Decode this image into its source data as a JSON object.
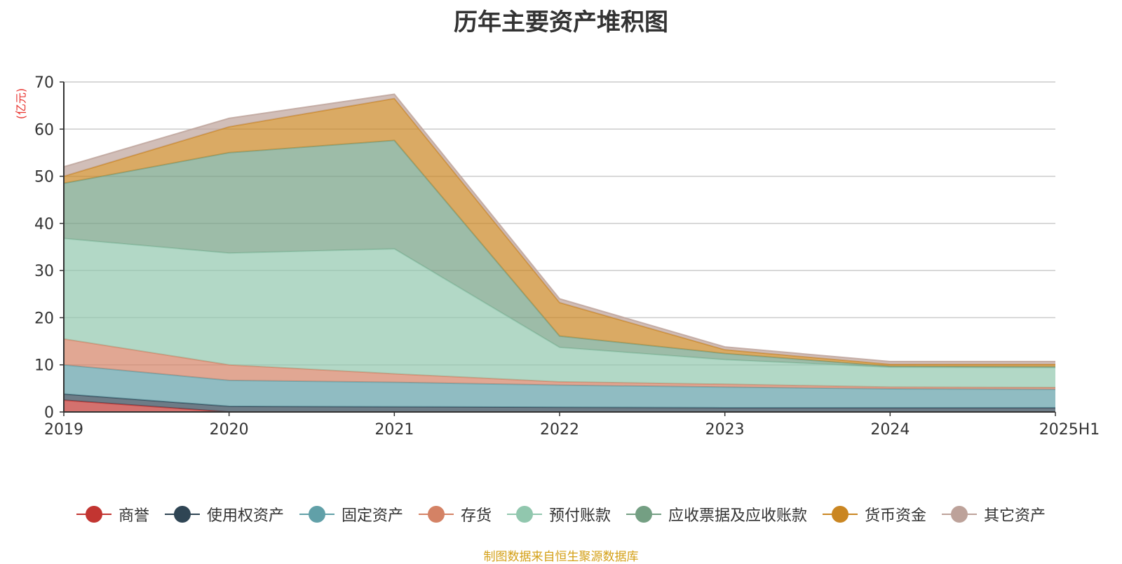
{
  "chart_data": {
    "type": "area",
    "stacked": true,
    "title": "历年主要资产堆积图",
    "unit_label": "(亿元)",
    "x": [
      "2019",
      "2020",
      "2021",
      "2022",
      "2023",
      "2024",
      "2025H1"
    ],
    "ylim": [
      0,
      70
    ],
    "yticks": [
      0,
      10,
      20,
      30,
      40,
      50,
      60,
      70
    ],
    "grid": true,
    "legend_position": "bottom",
    "series": [
      {
        "name": "商誉",
        "color": "#c23531",
        "values": [
          2.5,
          0,
          0,
          0,
          0,
          0,
          0
        ]
      },
      {
        "name": "使用权资产",
        "color": "#2f4554",
        "values": [
          1.3,
          1.2,
          1.1,
          1.0,
          0.9,
          0.9,
          0.9
        ]
      },
      {
        "name": "固定资产",
        "color": "#61a0a8",
        "values": [
          6.2,
          5.5,
          5.2,
          4.7,
          4.4,
          4.0,
          3.9
        ]
      },
      {
        "name": "存货",
        "color": "#d48265",
        "values": [
          5.5,
          3.3,
          1.8,
          0.7,
          0.6,
          0.4,
          0.4
        ]
      },
      {
        "name": "预付账款",
        "color": "#91c7ae",
        "values": [
          21.3,
          23.7,
          26.5,
          7.3,
          5.2,
          4.2,
          4.2
        ]
      },
      {
        "name": "应收票据及应收账款",
        "color": "#749f83",
        "values": [
          11.7,
          21.3,
          23.0,
          2.4,
          1.3,
          0.2,
          0.2
        ]
      },
      {
        "name": "货币资金",
        "color": "#ca8622",
        "values": [
          1.5,
          5.5,
          8.9,
          7.1,
          0.8,
          0.4,
          0.5
        ]
      },
      {
        "name": "其它资产",
        "color": "#bda29a",
        "values": [
          2.0,
          1.8,
          0.9,
          0.8,
          0.6,
          0.6,
          0.6
        ]
      }
    ]
  },
  "source_note": "制图数据来自恒生聚源数据库"
}
